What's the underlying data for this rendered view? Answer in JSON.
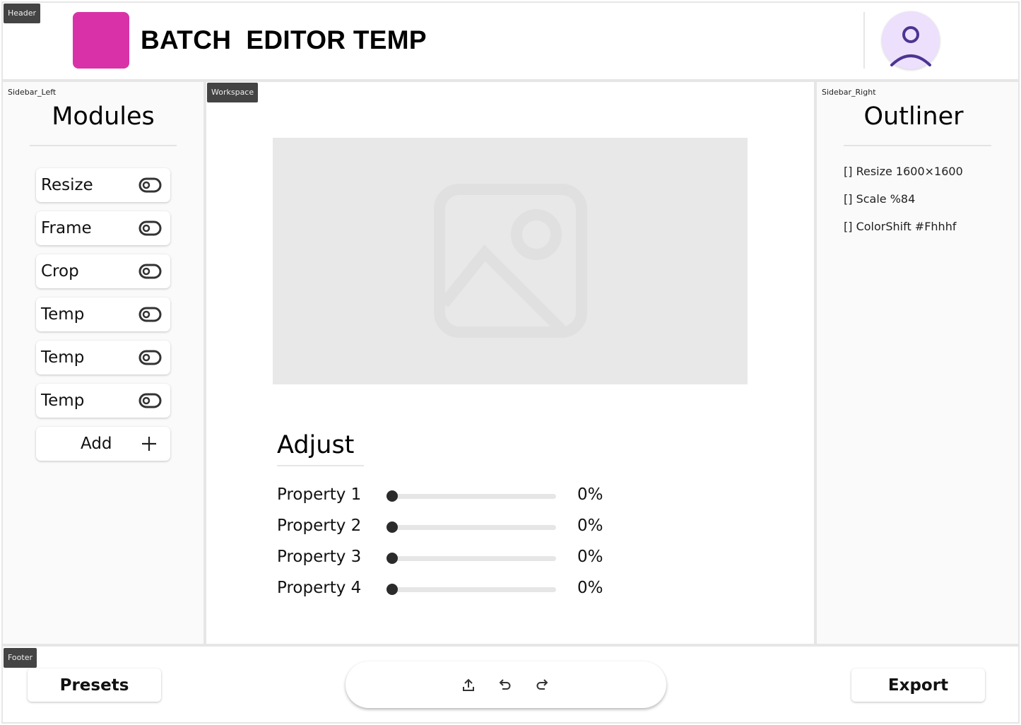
{
  "regions": {
    "header": "Header",
    "sidebar_left": "Sidebar_Left",
    "workspace": "Workspace",
    "sidebar_right": "Sidebar_Right",
    "footer": "Footer"
  },
  "header": {
    "title": "BATCH  EDITOR TEMP",
    "logo_color": "#d932a8",
    "avatar_bg": "#ece0fc",
    "avatar_icon": "user-icon",
    "avatar_icon_color": "#4b3591"
  },
  "sidebar_left": {
    "title": "Modules",
    "modules": [
      {
        "label": "Resize",
        "toggle": "off"
      },
      {
        "label": "Frame",
        "toggle": "off"
      },
      {
        "label": "Crop",
        "toggle": "off"
      },
      {
        "label": "Temp",
        "toggle": "off"
      },
      {
        "label": "Temp",
        "toggle": "off"
      },
      {
        "label": "Temp",
        "toggle": "off"
      }
    ],
    "add_label": "Add"
  },
  "workspace": {
    "image_icon": "image-placeholder-icon",
    "adjust": {
      "title": "Adjust",
      "properties": [
        {
          "label": "Property 1",
          "value": 0,
          "display": "0%"
        },
        {
          "label": "Property 2",
          "value": 0,
          "display": "0%"
        },
        {
          "label": "Property 3",
          "value": 0,
          "display": "0%"
        },
        {
          "label": "Property 4",
          "value": 0,
          "display": "0%"
        }
      ]
    }
  },
  "sidebar_right": {
    "title": "Outliner",
    "items": [
      "[] Resize 1600×1600",
      "[] Scale %84",
      "[] ColorShift #Fhhhf"
    ]
  },
  "footer": {
    "presets_label": "Presets",
    "export_label": "Export",
    "toolbar_icons": [
      "upload-icon",
      "undo-icon",
      "redo-icon"
    ]
  }
}
